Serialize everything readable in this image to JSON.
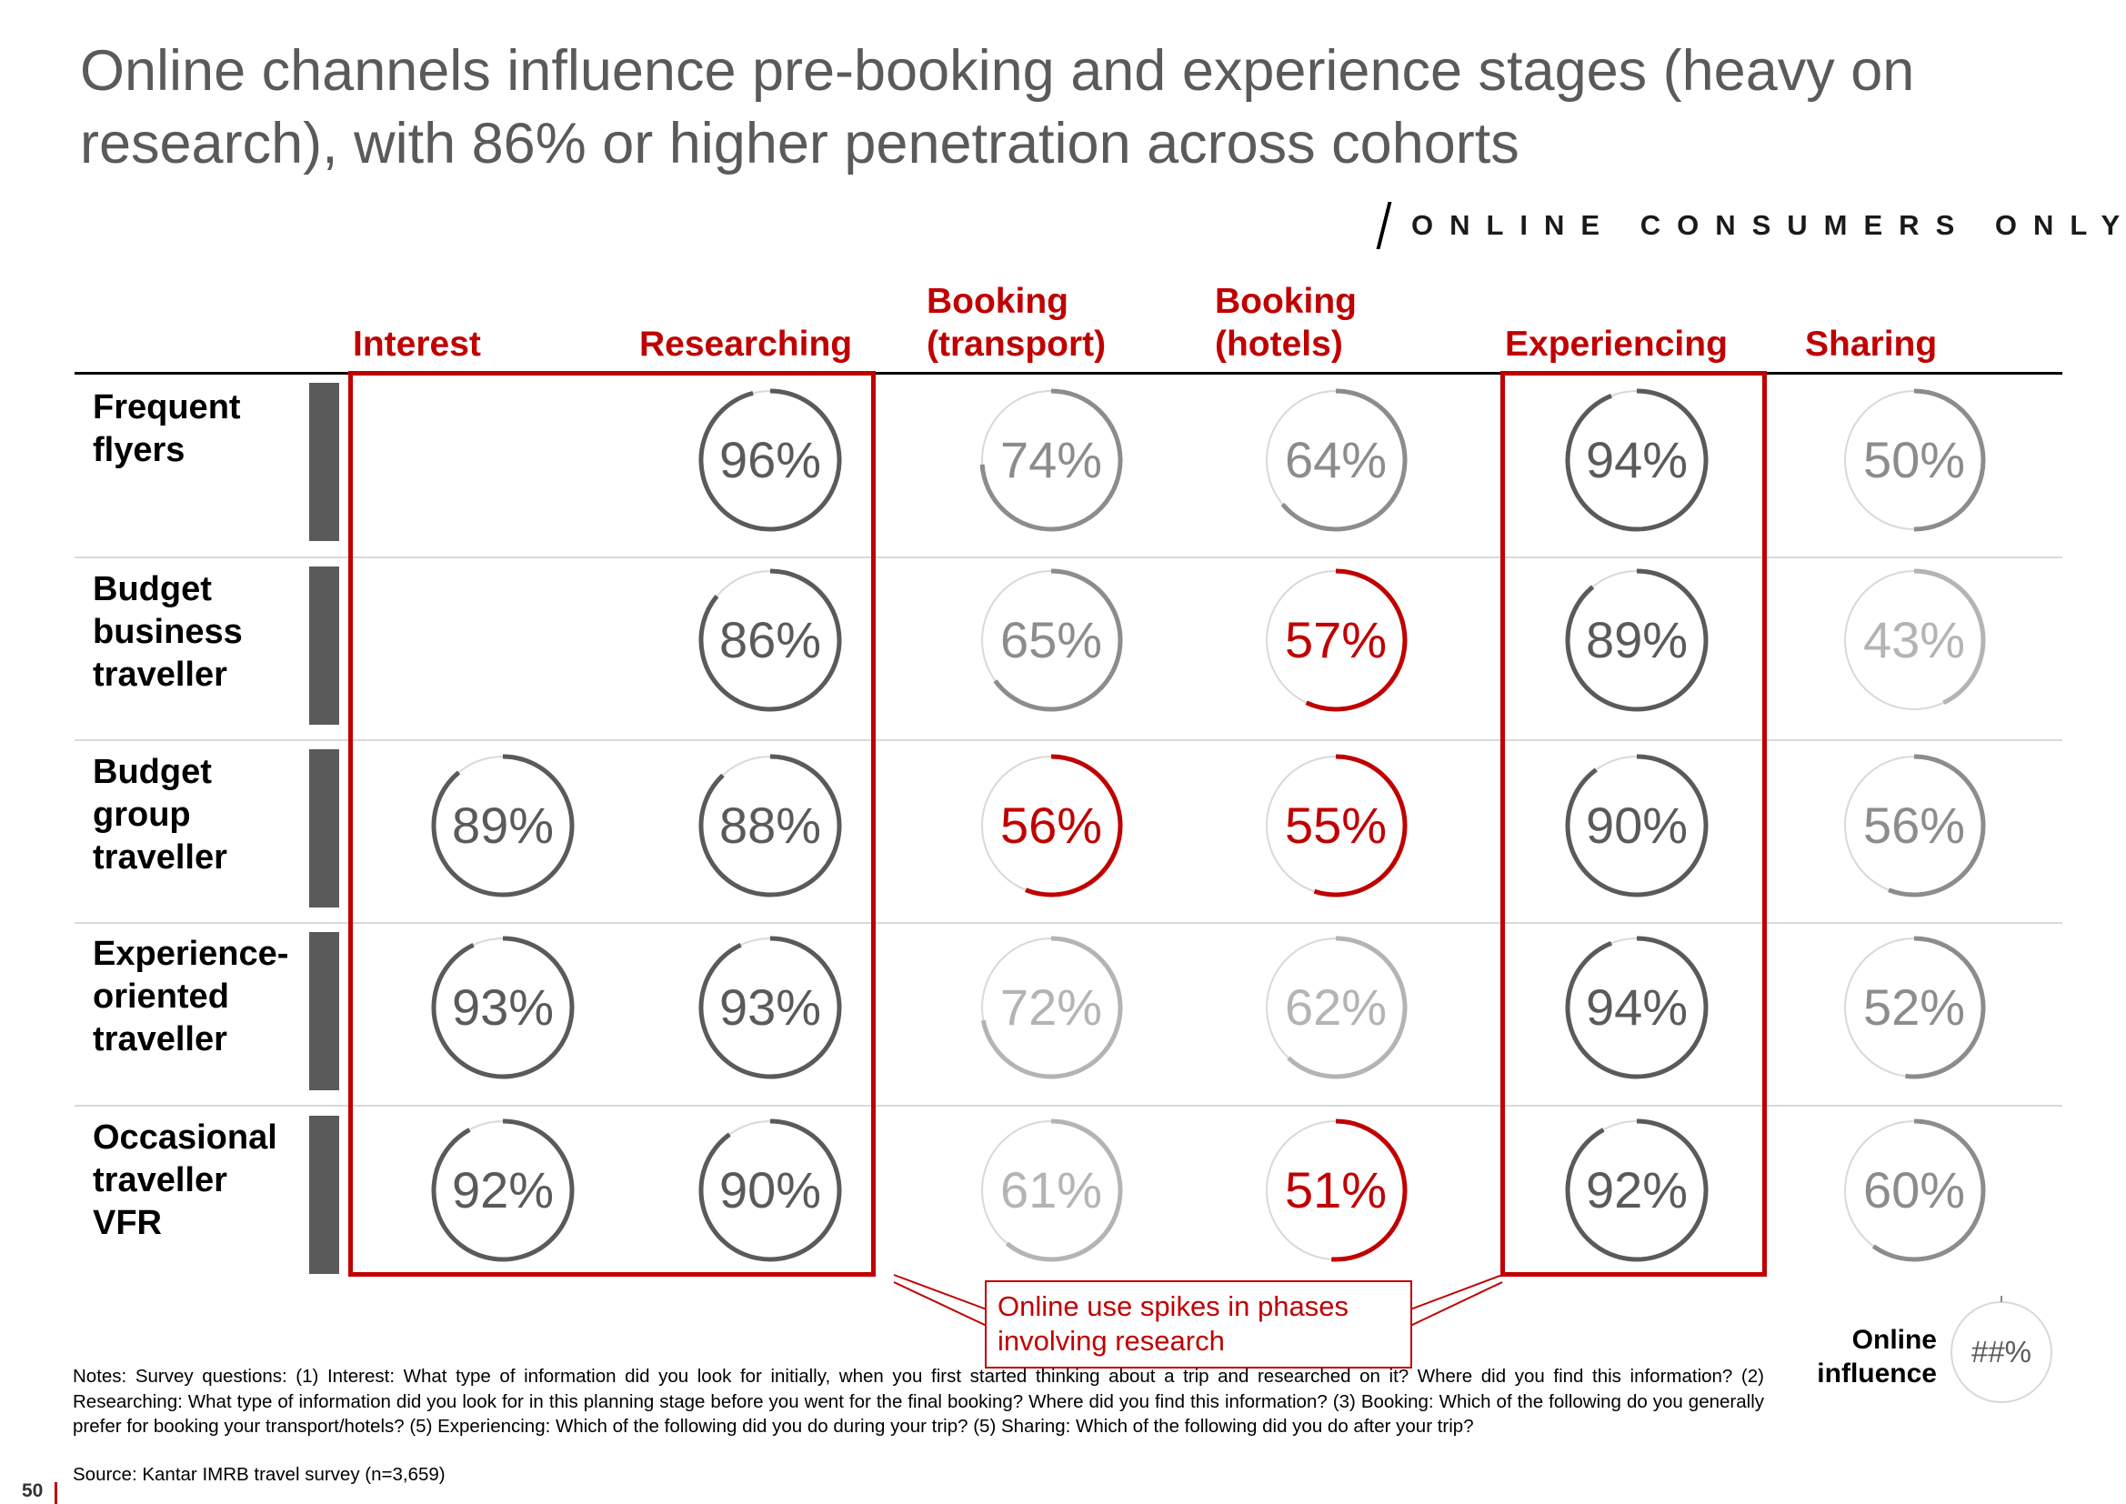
{
  "title": "Online channels influence pre-booking and experience stages (heavy on research), with 86% or higher penetration across cohorts",
  "tag": "ONLINE CONSUMERS ONLY",
  "columns": {
    "interest": "Interest",
    "researching": "Researching",
    "booking_transport": [
      "Booking",
      "(transport)"
    ],
    "booking_hotels": [
      "Booking",
      "(hotels)"
    ],
    "experiencing": "Experiencing",
    "sharing": "Sharing"
  },
  "rows": {
    "frequent": [
      "Frequent",
      "flyers"
    ],
    "budget_business": [
      "Budget",
      "business",
      "traveller"
    ],
    "budget_group": [
      "Budget",
      "group",
      "traveller"
    ],
    "experience": [
      "Experience-",
      "oriented",
      "traveller"
    ],
    "occasional": [
      "Occasional",
      "traveller",
      "VFR"
    ]
  },
  "callout": [
    "Online use spikes in phases",
    "involving research"
  ],
  "notes": "Notes: Survey questions: (1) Interest: What type of information did you look for initially, when you first started thinking about a trip and researched on it? Where did you find this information? (2) Researching: What type of information did you look for in this planning stage before you went for the final booking? Where did you find this information? (3) Booking: Which of the following do you generally prefer for booking your transport/hotels? (5) Experiencing: Which of the following did you do during your  trip? (5) Sharing: Which of the following did you do after your  trip?",
  "source": "Source: Kantar IMRB travel survey (n=3,659)",
  "legend": {
    "label": [
      "Online",
      "influence"
    ],
    "placeholder": "##%"
  },
  "page_number": "50",
  "colors": {
    "accent": "#c00000",
    "dark": "#5a5a5a",
    "medium": "#8c8c8c",
    "light": "#b4b4b4",
    "track": "#d9d9d9"
  },
  "chart_data": {
    "type": "table",
    "title": "Online channels influence pre-booking and experience stages (heavy on research), with 86% or higher penetration across cohorts",
    "columns": [
      "Interest",
      "Researching",
      "Booking (transport)",
      "Booking (hotels)",
      "Experiencing",
      "Sharing"
    ],
    "rows": [
      "Frequent flyers",
      "Budget business traveller",
      "Budget group traveller",
      "Experience-oriented traveller",
      "Occasional traveller VFR"
    ],
    "values": [
      [
        null,
        96,
        74,
        64,
        94,
        50
      ],
      [
        null,
        86,
        65,
        57,
        89,
        43
      ],
      [
        89,
        88,
        56,
        55,
        90,
        56
      ],
      [
        93,
        93,
        72,
        62,
        94,
        52
      ],
      [
        92,
        90,
        61,
        51,
        92,
        60
      ]
    ],
    "tones": [
      [
        null,
        "dark",
        "medium",
        "medium",
        "dark",
        "medium"
      ],
      [
        null,
        "dark",
        "medium",
        "red",
        "dark",
        "light"
      ],
      [
        "dark",
        "dark",
        "red",
        "red",
        "dark",
        "medium"
      ],
      [
        "dark",
        "dark",
        "light",
        "light",
        "dark",
        "medium"
      ],
      [
        "dark",
        "dark",
        "light",
        "red",
        "dark",
        "medium"
      ]
    ],
    "highlighted_columns": [
      "Interest",
      "Researching",
      "Experiencing"
    ],
    "unit": "%"
  }
}
